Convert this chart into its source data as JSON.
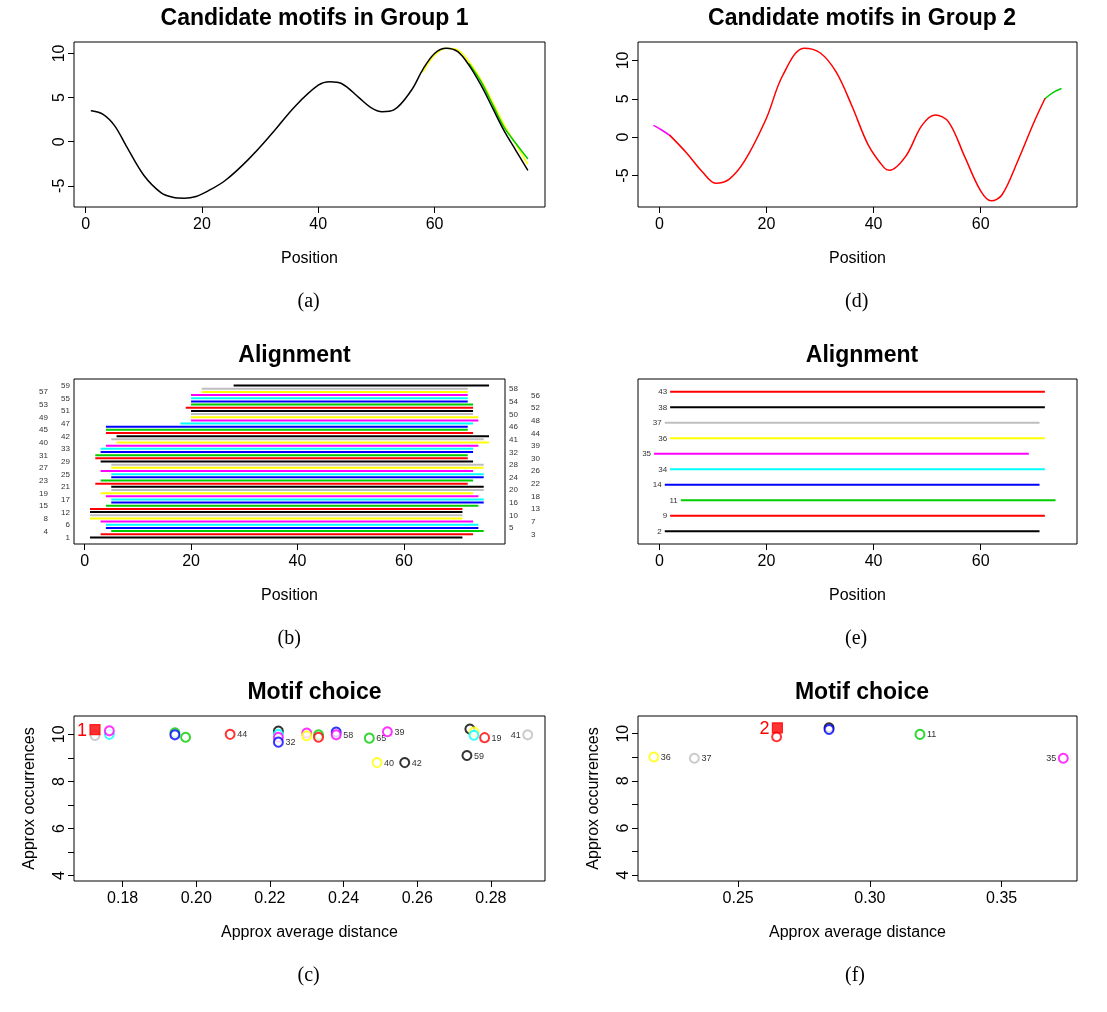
{
  "chart_data": [
    {
      "type": "line",
      "title": "Candidate motifs in Group 1",
      "xlabel": "Position",
      "annotations": [
        "(a)"
      ],
      "xlim": [
        -2,
        79
      ],
      "ylim": [
        -7.4,
        11.3
      ],
      "xticks": [
        0,
        20,
        40,
        60
      ],
      "yticks": [
        -5,
        0,
        5,
        10
      ],
      "series": [
        {
          "color": "#ffff00",
          "x": [
            58,
            60,
            62,
            64,
            66,
            68,
            70,
            72,
            74,
            76
          ],
          "values": [
            7.9,
            9.8,
            10.6,
            10.4,
            9.0,
            7.0,
            4.5,
            1.9,
            -0.3,
            -2.5
          ]
        },
        {
          "color": "#00cd00",
          "x": [
            66,
            68,
            70,
            72,
            74,
            76
          ],
          "values": [
            8.8,
            6.8,
            4.2,
            1.6,
            -0.2,
            -1.9
          ]
        },
        {
          "color": "#000000",
          "x": [
            1,
            3,
            5,
            7,
            10,
            13,
            15,
            17,
            19,
            21,
            24,
            28,
            32,
            36,
            40,
            42,
            44,
            47,
            49,
            51,
            53,
            56,
            58,
            60,
            62,
            64,
            66,
            68,
            70,
            72,
            74,
            76
          ],
          "values": [
            3.5,
            3.1,
            1.8,
            -0.5,
            -3.8,
            -5.8,
            -6.3,
            -6.4,
            -6.2,
            -5.6,
            -4.4,
            -2.0,
            0.9,
            4.0,
            6.4,
            6.8,
            6.6,
            5.0,
            3.9,
            3.4,
            3.6,
            5.8,
            8.2,
            10.0,
            10.6,
            10.2,
            8.6,
            6.4,
            3.8,
            1.2,
            -1.0,
            -3.2
          ]
        }
      ]
    },
    {
      "type": "line",
      "title": "Candidate motifs in Group 2",
      "xlabel": "Position",
      "annotations": [
        "(d)"
      ],
      "xlim": [
        -4,
        78
      ],
      "ylim": [
        -9.1,
        12.4
      ],
      "xticks": [
        0,
        20,
        40,
        60
      ],
      "yticks": [
        -5,
        0,
        5,
        10
      ],
      "series": [
        {
          "color": "#ff00ff",
          "x": [
            -1,
            0.5,
            2
          ],
          "values": [
            1.5,
            0.9,
            0.2
          ]
        },
        {
          "color": "#00cd00",
          "x": [
            72,
            73.5,
            75
          ],
          "values": [
            5,
            5.8,
            6.3
          ]
        },
        {
          "color": "#ff0000",
          "x": [
            2,
            5,
            8,
            10.5,
            13,
            16,
            20,
            23,
            27,
            30,
            33,
            36,
            39,
            42,
            43,
            46,
            49,
            51.5,
            54,
            57,
            60,
            62,
            64,
            67,
            70,
            72
          ],
          "values": [
            0.2,
            -2,
            -4.5,
            -6,
            -5.5,
            -3,
            2.5,
            8,
            11.6,
            11,
            8.5,
            4,
            -1,
            -4,
            -4.3,
            -2.5,
            1.5,
            2.9,
            2,
            -2.5,
            -7,
            -8.3,
            -7.5,
            -3,
            2,
            5
          ]
        }
      ]
    },
    {
      "type": "bar",
      "orientation": "horizontal",
      "title": "Alignment",
      "xlabel": "Position",
      "annotations": [
        "(b)"
      ],
      "xlim": [
        -2,
        79
      ],
      "xticks": [
        0,
        20,
        40,
        60
      ],
      "tick_labels": "x",
      "categories": [
        "59",
        "58",
        "57",
        "56",
        "55",
        "54",
        "53",
        "52",
        "51",
        "50",
        "49",
        "48",
        "47",
        "46",
        "45",
        "44",
        "42",
        "41",
        "40",
        "39",
        "33",
        "32",
        "31",
        "30",
        "29",
        "28",
        "27",
        "26",
        "25",
        "24",
        "23",
        "22",
        "21",
        "20",
        "19",
        "18",
        "17",
        "16",
        "15",
        "13",
        "12",
        "10",
        "8",
        "7",
        "6",
        "5",
        "4",
        "3",
        "1"
      ],
      "base": [
        28,
        22,
        22,
        20,
        20,
        20,
        20,
        19,
        20,
        20,
        20,
        20,
        18,
        4,
        4,
        4,
        6,
        5,
        6,
        4,
        3,
        3,
        2,
        2,
        3,
        5,
        5,
        3,
        5,
        5,
        3,
        2,
        5,
        5,
        3,
        4,
        5,
        5,
        4,
        1,
        1,
        1,
        1,
        3,
        4,
        4,
        5,
        3,
        1
      ],
      "values": [
        48,
        50,
        50,
        52,
        52,
        52,
        53,
        54,
        53,
        53,
        54,
        54,
        55,
        68,
        68,
        69,
        70,
        70,
        70,
        70,
        70,
        70,
        70,
        70,
        70,
        70,
        70,
        70,
        70,
        70,
        70,
        70,
        70,
        70,
        70,
        70,
        70,
        70,
        70,
        70,
        70,
        70,
        70,
        70,
        70,
        70,
        70,
        70,
        70
      ],
      "colors": [
        "#000000",
        "#bebebe",
        "#ffff00",
        "#ff00ff",
        "#00ffff",
        "#0000ff",
        "#00cd00",
        "#ff0000",
        "#000000",
        "#bebebe",
        "#ffff00",
        "#ff00ff",
        "#00ffff",
        "#0000ff",
        "#00cd00",
        "#ff0000",
        "#000000",
        "#bebebe",
        "#ffff00",
        "#ff00ff",
        "#00ffff",
        "#0000ff",
        "#00cd00",
        "#ff0000",
        "#000000",
        "#bebebe",
        "#ffff00",
        "#ff00ff",
        "#00ffff",
        "#0000ff",
        "#00cd00",
        "#ff0000",
        "#000000",
        "#bebebe",
        "#ffff00",
        "#ff00ff",
        "#00ffff",
        "#0000ff",
        "#00cd00",
        "#ff0000",
        "#000000",
        "#bebebe",
        "#ffff00",
        "#ff00ff",
        "#00ffff",
        "#0000ff",
        "#00cd00",
        "#ff0000",
        "#000000"
      ]
    },
    {
      "type": "bar",
      "orientation": "horizontal",
      "title": "Alignment",
      "xlabel": "Position",
      "annotations": [
        "(e)"
      ],
      "xlim": [
        -4,
        78
      ],
      "xticks": [
        0,
        20,
        40,
        60
      ],
      "tick_labels": "x",
      "categories": [
        "43",
        "38",
        "37",
        "36",
        "35",
        "34",
        "14",
        "11",
        "9",
        "2"
      ],
      "base": [
        2,
        2,
        1,
        2,
        -1,
        2,
        1,
        4,
        2,
        1
      ],
      "values": [
        70,
        70,
        70,
        70,
        70,
        70,
        70,
        70,
        70,
        70
      ],
      "colors": [
        "#ff0000",
        "#000000",
        "#bebebe",
        "#ffff00",
        "#ff00ff",
        "#00ffff",
        "#0000ff",
        "#00cd00",
        "#ff0000",
        "#000000"
      ]
    },
    {
      "type": "scatter",
      "title": "Motif choice",
      "xlabel": "Approx average distance",
      "ylabel": "Approx occurrences",
      "annotations": [
        "(c)",
        {
          "text": "1",
          "x": 0.1725,
          "y": 10.2
        },
        {
          "text": "44",
          "x": 0.2092,
          "y": 10.0
        },
        {
          "text": "32",
          "x": 0.2223,
          "y": 9.67
        },
        {
          "text": "58",
          "x": 0.238,
          "y": 9.98
        },
        {
          "text": "65",
          "x": 0.247,
          "y": 9.84
        },
        {
          "text": "39",
          "x": 0.2519,
          "y": 10.11
        },
        {
          "text": "40",
          "x": 0.2491,
          "y": 8.8
        },
        {
          "text": "42",
          "x": 0.2566,
          "y": 8.8
        },
        {
          "text": "59",
          "x": 0.2735,
          "y": 9.1
        },
        {
          "text": "19",
          "x": 0.2783,
          "y": 9.86
        },
        {
          "text": "41",
          "x": 0.29,
          "y": 9.98
        }
      ],
      "xlim": [
        0.1668,
        0.2947
      ],
      "ylim": [
        3.77,
        10.78
      ],
      "xticks": [
        {
          "value": 0.18,
          "label": "0.18"
        },
        {
          "value": 0.2,
          "label": "0.20"
        },
        {
          "value": 0.22,
          "label": "0.22"
        },
        {
          "value": 0.24,
          "label": "0.24"
        },
        {
          "value": 0.26,
          "label": "0.26"
        },
        {
          "value": 0.28,
          "label": "0.28"
        }
      ],
      "yticks": [
        4,
        {
          "value": 5,
          "label": null
        },
        6,
        {
          "value": 7,
          "label": null
        },
        8,
        {
          "value": 9,
          "label": null
        },
        10
      ],
      "series": [
        {
          "marker": "circle",
          "x": [
            0.1725,
            0.1764,
            0.1764,
            0.1942,
            0.1942,
            0.1971,
            0.2092,
            0.2223,
            0.2223,
            0.2223,
            0.2223,
            0.23,
            0.23,
            0.2332,
            0.2332,
            0.238,
            0.238,
            0.247,
            0.2519,
            0.2491,
            0.2566,
            0.2735,
            0.2743,
            0.2754,
            0.2754,
            0.2783,
            0.29
          ],
          "values": [
            9.95,
            10.0,
            10.15,
            10.07,
            9.98,
            9.88,
            10.0,
            10.14,
            10.0,
            9.88,
            9.67,
            10.06,
            9.94,
            9.98,
            9.88,
            10.1,
            9.98,
            9.84,
            10.11,
            8.8,
            8.8,
            9.1,
            10.23,
            10.1,
            9.96,
            9.86,
            9.98
          ],
          "colors": [
            "#bebebe",
            "#00ffff",
            "#ff00ff",
            "#00cd00",
            "#0000ff",
            "#00cd00",
            "#ff0000",
            "#000000",
            "#00ffff",
            "#ff00ff",
            "#0000ff",
            "#ff00ff",
            "#ffff00",
            "#00cd00",
            "#ff0000",
            "#0000ff",
            "#ff00ff",
            "#00cd00",
            "#ff00ff",
            "#ffff00",
            "#000000",
            "#000000",
            "#000000",
            "#ffff00",
            "#00ffff",
            "#ff0000",
            "#bebebe"
          ]
        },
        {
          "marker": "square",
          "color": "#ff0000",
          "x": [
            0.1725
          ],
          "values": [
            10.2
          ]
        }
      ]
    },
    {
      "type": "scatter",
      "title": "Motif choice",
      "xlabel": "Approx average distance",
      "ylabel": "Approx occurrences",
      "annotations": [
        "(f)",
        {
          "text": "2",
          "x": 0.2649,
          "y": 10.25
        },
        {
          "text": "11",
          "x": 0.319,
          "y": 9.97
        },
        {
          "text": "36",
          "x": 0.218,
          "y": 9.01
        },
        {
          "text": "37",
          "x": 0.2334,
          "y": 8.96
        },
        {
          "text": "35",
          "x": 0.3734,
          "y": 8.96
        }
      ],
      "xlim": [
        0.212,
        0.3786
      ],
      "ylim": [
        3.75,
        10.75
      ],
      "xticks": [
        {
          "value": 0.25,
          "label": "0.25"
        },
        {
          "value": 0.3,
          "label": "0.30"
        },
        {
          "value": 0.35,
          "label": "0.35"
        }
      ],
      "yticks": [
        4,
        {
          "value": 5,
          "label": null
        },
        6,
        {
          "value": 7,
          "label": null
        },
        8,
        {
          "value": 9,
          "label": null
        },
        10
      ],
      "series": [
        {
          "marker": "circle",
          "x": [
            0.2646,
            0.2845,
            0.2845,
            0.319,
            0.218,
            0.2334,
            0.3734
          ],
          "values": [
            9.87,
            10.25,
            10.18,
            9.97,
            9.01,
            8.96,
            8.96
          ],
          "colors": [
            "#ff0000",
            "#000000",
            "#0000ff",
            "#00cd00",
            "#ffff00",
            "#bebebe",
            "#ff00ff"
          ]
        },
        {
          "marker": "square",
          "color": "#ff0000",
          "x": [
            0.2649
          ],
          "values": [
            10.25
          ]
        }
      ]
    }
  ]
}
